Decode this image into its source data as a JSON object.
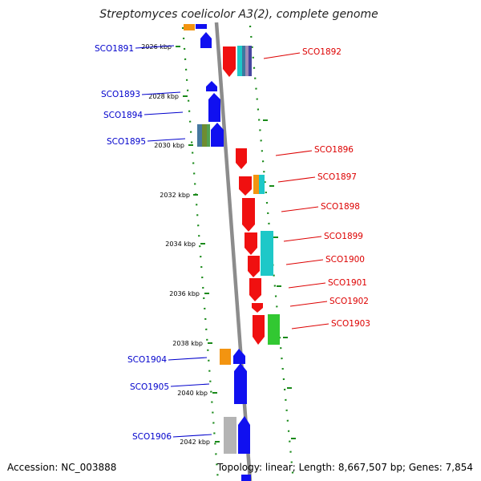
{
  "title": "Streptomyces coelicolor A3(2), complete genome",
  "accession": "Accession: NC_003888",
  "topology": "Topology: linear; Length: 8,667,507 bp; Genes: 7,854",
  "colors": {
    "forward_strand_label": "#0000cc",
    "reverse_strand_label": "#dd0000",
    "forward_gene": "#1010f0",
    "reverse_gene": "#f01010",
    "backbone": "#8c8c8c",
    "tick": "#1a8a1a"
  },
  "ruler_labels": [
    "2026 kbp",
    "2028 kbp",
    "2030 kbp",
    "2032 kbp",
    "2034 kbp",
    "2036 kbp",
    "2038 kbp",
    "2040 kbp",
    "2042 kbp"
  ],
  "genes_forward": [
    {
      "id": "SCO1891",
      "label": "SCO1891"
    },
    {
      "id": "SCO1893",
      "label": "SCO1893"
    },
    {
      "id": "SCO1894",
      "label": "SCO1894"
    },
    {
      "id": "SCO1895",
      "label": "SCO1895"
    },
    {
      "id": "SCO1904",
      "label": "SCO1904"
    },
    {
      "id": "SCO1905",
      "label": "SCO1905"
    },
    {
      "id": "SCO1906",
      "label": "SCO1906"
    }
  ],
  "genes_reverse": [
    {
      "id": "SCO1892",
      "label": "SCO1892"
    },
    {
      "id": "SCO1896",
      "label": "SCO1896"
    },
    {
      "id": "SCO1897",
      "label": "SCO1897"
    },
    {
      "id": "SCO1898",
      "label": "SCO1898"
    },
    {
      "id": "SCO1899",
      "label": "SCO1899"
    },
    {
      "id": "SCO1900",
      "label": "SCO1900"
    },
    {
      "id": "SCO1901",
      "label": "SCO1901"
    },
    {
      "id": "SCO1902",
      "label": "SCO1902"
    },
    {
      "id": "SCO1903",
      "label": "SCO1903"
    }
  ]
}
